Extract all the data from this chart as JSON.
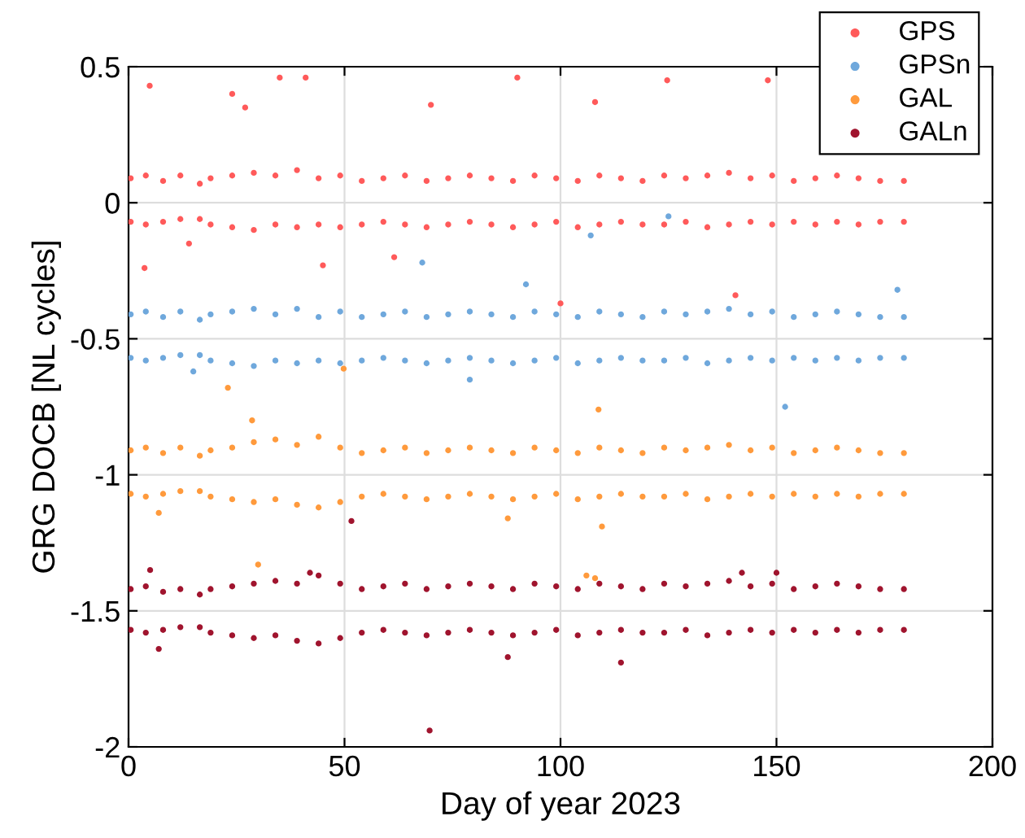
{
  "chart_data": {
    "type": "scatter",
    "xlabel": "Day of year 2023",
    "ylabel": "GRG DOCB [NL cycles]",
    "xlim": [
      0,
      200
    ],
    "xticks": [
      0,
      50,
      100,
      150,
      200
    ],
    "ylim": [
      -2,
      0.5
    ],
    "yticks": [
      -2,
      -1.5,
      -1,
      -0.5,
      0,
      0.5
    ],
    "grid": true,
    "legend": "top right",
    "marker": "circle",
    "series": [
      {
        "name": "GPS",
        "color": "#ff5a5a",
        "x": [
          0.5,
          4,
          8,
          12,
          16.5,
          19,
          24,
          29,
          34,
          39,
          44,
          49,
          54,
          59,
          64,
          69,
          74,
          79,
          84,
          89,
          94,
          99,
          104,
          109,
          114,
          119,
          124,
          129,
          134,
          139,
          144,
          149,
          154,
          159,
          164,
          169,
          174,
          179.5,
          0.5,
          4,
          8,
          12,
          16.5,
          19,
          24,
          29,
          34,
          39,
          44,
          49,
          54,
          59,
          64,
          69,
          74,
          79,
          84,
          89,
          94,
          99,
          104,
          109,
          114,
          119,
          124,
          129,
          134,
          139,
          144,
          149,
          154,
          159,
          164,
          169,
          174,
          179.5,
          4.9,
          24,
          27,
          35,
          41,
          90,
          124.7,
          148,
          3.7,
          14,
          61.5,
          100,
          140.5,
          108,
          45,
          70
        ],
        "values": [
          0.09,
          0.1,
          0.08,
          0.1,
          0.07,
          0.09,
          0.1,
          0.11,
          0.1,
          0.12,
          0.09,
          0.1,
          0.08,
          0.09,
          0.1,
          0.08,
          0.09,
          0.1,
          0.09,
          0.08,
          0.1,
          0.09,
          0.08,
          0.1,
          0.09,
          0.08,
          0.1,
          0.09,
          0.1,
          0.11,
          0.09,
          0.1,
          0.08,
          0.09,
          0.1,
          0.09,
          0.08,
          0.08,
          -0.07,
          -0.08,
          -0.07,
          -0.06,
          -0.06,
          -0.08,
          -0.09,
          -0.1,
          -0.08,
          -0.09,
          -0.08,
          -0.09,
          -0.08,
          -0.07,
          -0.08,
          -0.09,
          -0.08,
          -0.07,
          -0.08,
          -0.09,
          -0.08,
          -0.07,
          -0.09,
          -0.08,
          -0.07,
          -0.08,
          -0.08,
          -0.07,
          -0.09,
          -0.08,
          -0.07,
          -0.08,
          -0.07,
          -0.08,
          -0.07,
          -0.08,
          -0.07,
          -0.07,
          0.43,
          0.4,
          0.35,
          0.46,
          0.46,
          0.46,
          0.45,
          0.45,
          -0.24,
          -0.15,
          -0.2,
          -0.37,
          -0.34,
          0.37,
          -0.23,
          0.36
        ]
      },
      {
        "name": "GPSn",
        "color": "#6fa8dc",
        "x": [
          0.5,
          4,
          8,
          12,
          16.5,
          19,
          24,
          29,
          34,
          39,
          44,
          49,
          54,
          59,
          64,
          69,
          74,
          79,
          84,
          89,
          94,
          99,
          104,
          109,
          114,
          119,
          124,
          129,
          134,
          139,
          144,
          149,
          154,
          159,
          164,
          169,
          174,
          179.5,
          0.5,
          4,
          8,
          12,
          16.5,
          19,
          24,
          29,
          34,
          39,
          44,
          49,
          54,
          59,
          64,
          69,
          74,
          79,
          84,
          89,
          94,
          99,
          104,
          109,
          114,
          119,
          124,
          129,
          134,
          139,
          144,
          149,
          154,
          159,
          164,
          169,
          174,
          179.5,
          152,
          79,
          68,
          107,
          15,
          92,
          125,
          178
        ],
        "values": [
          -0.41,
          -0.4,
          -0.42,
          -0.4,
          -0.43,
          -0.41,
          -0.4,
          -0.39,
          -0.41,
          -0.39,
          -0.42,
          -0.4,
          -0.42,
          -0.41,
          -0.4,
          -0.42,
          -0.41,
          -0.4,
          -0.41,
          -0.42,
          -0.4,
          -0.41,
          -0.42,
          -0.4,
          -0.41,
          -0.42,
          -0.4,
          -0.41,
          -0.4,
          -0.39,
          -0.41,
          -0.4,
          -0.42,
          -0.41,
          -0.4,
          -0.41,
          -0.42,
          -0.42,
          -0.57,
          -0.58,
          -0.57,
          -0.56,
          -0.56,
          -0.58,
          -0.59,
          -0.6,
          -0.58,
          -0.59,
          -0.58,
          -0.59,
          -0.58,
          -0.57,
          -0.58,
          -0.59,
          -0.58,
          -0.57,
          -0.58,
          -0.59,
          -0.58,
          -0.57,
          -0.59,
          -0.58,
          -0.57,
          -0.58,
          -0.58,
          -0.57,
          -0.59,
          -0.58,
          -0.57,
          -0.58,
          -0.57,
          -0.58,
          -0.57,
          -0.58,
          -0.57,
          -0.57,
          -0.75,
          -0.65,
          -0.22,
          -0.12,
          -0.62,
          -0.3,
          -0.05,
          -0.32
        ]
      },
      {
        "name": "GAL",
        "color": "#ff9a3c",
        "x": [
          0.5,
          4,
          8,
          12,
          16.5,
          19,
          24,
          29,
          34,
          39,
          44,
          49,
          54,
          59,
          64,
          69,
          74,
          79,
          84,
          89,
          94,
          99,
          104,
          109,
          114,
          119,
          124,
          129,
          134,
          139,
          144,
          149,
          154,
          159,
          164,
          169,
          174,
          179.5,
          0.5,
          4,
          8,
          12,
          16.5,
          19,
          24,
          29,
          34,
          39,
          44,
          49,
          54,
          59,
          64,
          69,
          74,
          79,
          84,
          89,
          94,
          99,
          104,
          109,
          114,
          119,
          124,
          129,
          134,
          139,
          144,
          149,
          154,
          159,
          164,
          169,
          174,
          179.5,
          28.6,
          108.8,
          109.6,
          87.8,
          30,
          23,
          49.8,
          7,
          106,
          108
        ],
        "values": [
          -0.91,
          -0.9,
          -0.92,
          -0.9,
          -0.93,
          -0.91,
          -0.9,
          -0.88,
          -0.87,
          -0.89,
          -0.86,
          -0.9,
          -0.92,
          -0.91,
          -0.9,
          -0.92,
          -0.91,
          -0.9,
          -0.91,
          -0.92,
          -0.9,
          -0.91,
          -0.92,
          -0.9,
          -0.91,
          -0.92,
          -0.9,
          -0.91,
          -0.9,
          -0.89,
          -0.91,
          -0.9,
          -0.92,
          -0.91,
          -0.9,
          -0.91,
          -0.92,
          -0.92,
          -1.07,
          -1.08,
          -1.07,
          -1.06,
          -1.06,
          -1.08,
          -1.09,
          -1.1,
          -1.09,
          -1.11,
          -1.12,
          -1.1,
          -1.08,
          -1.07,
          -1.08,
          -1.09,
          -1.08,
          -1.07,
          -1.08,
          -1.09,
          -1.08,
          -1.07,
          -1.09,
          -1.08,
          -1.07,
          -1.08,
          -1.08,
          -1.07,
          -1.09,
          -1.08,
          -1.07,
          -1.08,
          -1.07,
          -1.08,
          -1.07,
          -1.08,
          -1.07,
          -1.07,
          -0.8,
          -0.76,
          -1.19,
          -1.16,
          -1.33,
          -0.68,
          -0.61,
          -1.14,
          -1.37,
          -1.38
        ]
      },
      {
        "name": "GALn",
        "color": "#a0142e",
        "x": [
          0.5,
          4,
          8,
          12,
          16.5,
          19,
          24,
          29,
          34,
          39,
          44,
          49,
          54,
          59,
          64,
          69,
          74,
          79,
          84,
          89,
          94,
          99,
          104,
          109,
          114,
          119,
          124,
          129,
          134,
          139,
          144,
          149,
          154,
          159,
          164,
          169,
          174,
          179.5,
          0.5,
          4,
          8,
          12,
          16.5,
          19,
          24,
          29,
          34,
          39,
          44,
          49,
          54,
          59,
          64,
          69,
          74,
          79,
          84,
          89,
          94,
          99,
          104,
          109,
          114,
          119,
          124,
          129,
          134,
          139,
          144,
          149,
          154,
          159,
          164,
          169,
          174,
          179.5,
          69.7,
          114,
          7,
          87.8,
          5,
          42,
          142,
          150,
          51.6
        ],
        "values": [
          -1.42,
          -1.41,
          -1.43,
          -1.42,
          -1.44,
          -1.42,
          -1.41,
          -1.4,
          -1.39,
          -1.4,
          -1.37,
          -1.4,
          -1.42,
          -1.41,
          -1.4,
          -1.42,
          -1.41,
          -1.4,
          -1.41,
          -1.42,
          -1.4,
          -1.41,
          -1.42,
          -1.4,
          -1.41,
          -1.42,
          -1.4,
          -1.41,
          -1.4,
          -1.39,
          -1.41,
          -1.4,
          -1.42,
          -1.41,
          -1.4,
          -1.41,
          -1.42,
          -1.42,
          -1.57,
          -1.58,
          -1.57,
          -1.56,
          -1.56,
          -1.58,
          -1.59,
          -1.6,
          -1.59,
          -1.61,
          -1.62,
          -1.6,
          -1.58,
          -1.57,
          -1.58,
          -1.59,
          -1.58,
          -1.57,
          -1.58,
          -1.59,
          -1.58,
          -1.57,
          -1.59,
          -1.58,
          -1.57,
          -1.58,
          -1.58,
          -1.57,
          -1.59,
          -1.58,
          -1.57,
          -1.58,
          -1.57,
          -1.58,
          -1.57,
          -1.58,
          -1.57,
          -1.57,
          -1.94,
          -1.69,
          -1.64,
          -1.67,
          -1.35,
          -1.36,
          -1.36,
          -1.36,
          -1.17
        ]
      }
    ]
  }
}
